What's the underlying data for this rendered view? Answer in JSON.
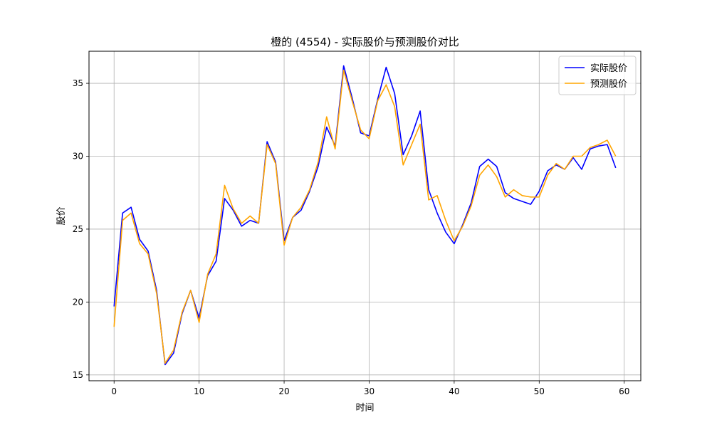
{
  "chart_data": {
    "type": "line",
    "title": "橙的 (4554) - 实际股价与预测股价对比",
    "xlabel": "时间",
    "ylabel": "股价",
    "xlim": [
      -2.95,
      61.95
    ],
    "ylim": [
      14.6,
      37.2
    ],
    "xticks": [
      0,
      10,
      20,
      30,
      40,
      50,
      60
    ],
    "yticks": [
      15,
      20,
      25,
      30,
      35
    ],
    "grid": true,
    "legend_position": "top-right",
    "x": [
      0,
      1,
      2,
      3,
      4,
      5,
      6,
      7,
      8,
      9,
      10,
      11,
      12,
      13,
      14,
      15,
      16,
      17,
      18,
      19,
      20,
      21,
      22,
      23,
      24,
      25,
      26,
      27,
      28,
      29,
      30,
      31,
      32,
      33,
      34,
      35,
      36,
      37,
      38,
      39,
      40,
      41,
      42,
      43,
      44,
      45,
      46,
      47,
      48,
      49,
      50,
      51,
      52,
      53,
      54,
      55,
      56,
      57,
      58,
      59
    ],
    "series": [
      {
        "name": "实际股价",
        "color": "#0000ff",
        "values": [
          19.7,
          26.1,
          26.5,
          24.3,
          23.5,
          20.8,
          15.7,
          16.5,
          19.2,
          20.8,
          18.9,
          21.8,
          22.8,
          27.1,
          26.3,
          25.2,
          25.6,
          25.4,
          31.0,
          29.6,
          24.2,
          25.8,
          26.3,
          27.6,
          29.3,
          32.0,
          30.7,
          36.2,
          34.0,
          31.6,
          31.4,
          33.9,
          36.1,
          34.3,
          30.1,
          31.4,
          33.1,
          27.7,
          26.1,
          24.8,
          24.0,
          25.3,
          26.8,
          29.3,
          29.8,
          29.3,
          27.5,
          27.1,
          26.9,
          26.7,
          27.6,
          29.0,
          29.4,
          29.1,
          29.9,
          29.1,
          30.5,
          30.7,
          30.8,
          29.2
        ]
      },
      {
        "name": "预测股价",
        "color": "#ffa500",
        "values": [
          18.3,
          25.6,
          26.1,
          24.0,
          23.3,
          20.6,
          15.8,
          16.7,
          19.3,
          20.8,
          18.6,
          21.9,
          23.3,
          28.0,
          26.4,
          25.4,
          25.9,
          25.4,
          30.8,
          29.5,
          23.9,
          25.8,
          26.5,
          27.7,
          29.6,
          32.7,
          30.5,
          35.9,
          33.8,
          31.8,
          31.2,
          33.8,
          34.9,
          33.4,
          29.4,
          30.8,
          32.2,
          27.0,
          27.3,
          25.6,
          24.2,
          25.2,
          26.6,
          28.7,
          29.4,
          28.6,
          27.2,
          27.7,
          27.3,
          27.2,
          27.2,
          28.7,
          29.5,
          29.1,
          30.0,
          30.0,
          30.6,
          30.8,
          31.1,
          30.0
        ]
      }
    ]
  }
}
